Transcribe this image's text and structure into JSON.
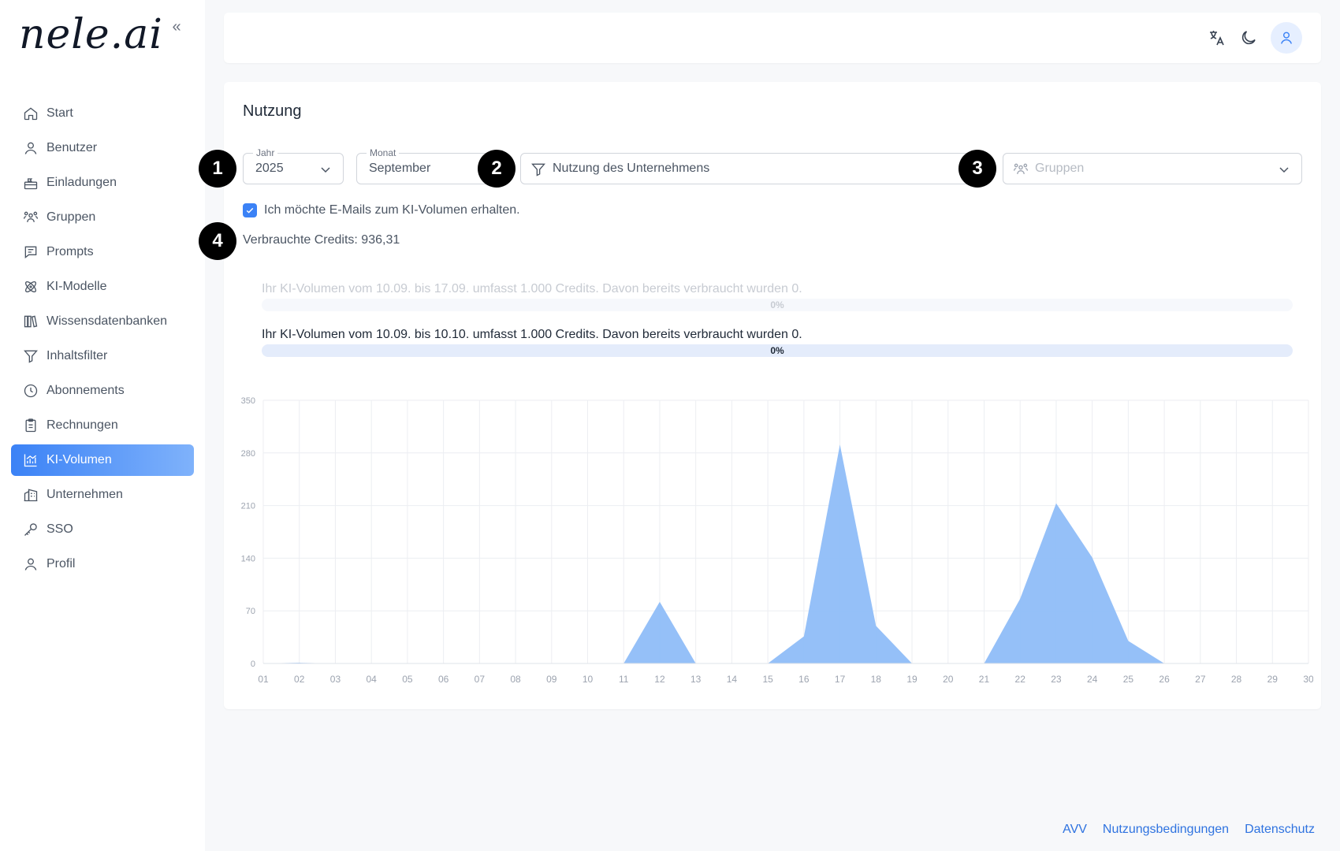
{
  "sidebar": {
    "logo": "nele.ai",
    "items": [
      {
        "label": "Start",
        "icon": "home-icon"
      },
      {
        "label": "Benutzer",
        "icon": "user-icon"
      },
      {
        "label": "Einladungen",
        "icon": "invitation-icon"
      },
      {
        "label": "Gruppen",
        "icon": "group-icon"
      },
      {
        "label": "Prompts",
        "icon": "prompt-icon"
      },
      {
        "label": "KI-Modelle",
        "icon": "atom-icon"
      },
      {
        "label": "Wissensdatenbanken",
        "icon": "library-icon"
      },
      {
        "label": "Inhaltsfilter",
        "icon": "filter-icon"
      },
      {
        "label": "Abonnements",
        "icon": "clock-icon"
      },
      {
        "label": "Rechnungen",
        "icon": "clipboard-icon"
      },
      {
        "label": "KI-Volumen",
        "icon": "chart-icon",
        "active": true
      },
      {
        "label": "Unternehmen",
        "icon": "building-icon"
      },
      {
        "label": "SSO",
        "icon": "key-icon"
      },
      {
        "label": "Profil",
        "icon": "user-icon"
      }
    ]
  },
  "main": {
    "title": "Nutzung",
    "year": {
      "label": "Jahr",
      "value": "2025"
    },
    "month": {
      "label": "Monat",
      "value": "September"
    },
    "scope": {
      "value": "Nutzung des Unternehmens"
    },
    "groups": {
      "placeholder": "Gruppen"
    },
    "markers": [
      "1",
      "2",
      "3",
      "4"
    ],
    "email_checkbox": {
      "label": "Ich möchte E-Mails zum KI-Volumen erhalten.",
      "checked": true
    },
    "credits_text": "Verbrauchte Credits: 936,31",
    "volumes": [
      {
        "text": "Ihr KI-Volumen vom 10.09. bis 17.09. umfasst 1.000 Credits. Davon bereits verbraucht wurden 0.",
        "progress_label": "0%",
        "progress": 0,
        "faded": true
      },
      {
        "text": "Ihr KI-Volumen vom 10.09. bis 10.10. umfasst 1.000 Credits. Davon bereits verbraucht wurden 0.",
        "progress_label": "0%",
        "progress": 0,
        "faded": false
      }
    ]
  },
  "chart_data": {
    "type": "area",
    "x": [
      "01",
      "02",
      "03",
      "04",
      "05",
      "06",
      "07",
      "08",
      "09",
      "10",
      "11",
      "12",
      "13",
      "14",
      "15",
      "16",
      "17",
      "18",
      "19",
      "20",
      "21",
      "22",
      "23",
      "24",
      "25",
      "26",
      "27",
      "28",
      "29",
      "30"
    ],
    "values": [
      0,
      1,
      0,
      0,
      0,
      0,
      0,
      0,
      0.5,
      0,
      0,
      82,
      0,
      0,
      0,
      36,
      291,
      50,
      0,
      0,
      0,
      86,
      213,
      141,
      30,
      0,
      0,
      0,
      0,
      0
    ],
    "yticks": [
      0,
      70,
      140,
      210,
      280,
      350
    ],
    "ylim": [
      0,
      350
    ],
    "grid": true,
    "color": "#8fbdf8"
  },
  "footer": {
    "links": [
      "AVV",
      "Nutzungsbedingungen",
      "Datenschutz"
    ]
  },
  "colors": {
    "accent": "#3b82f6",
    "link": "#2f73e0",
    "area": "#8fbdf8"
  }
}
